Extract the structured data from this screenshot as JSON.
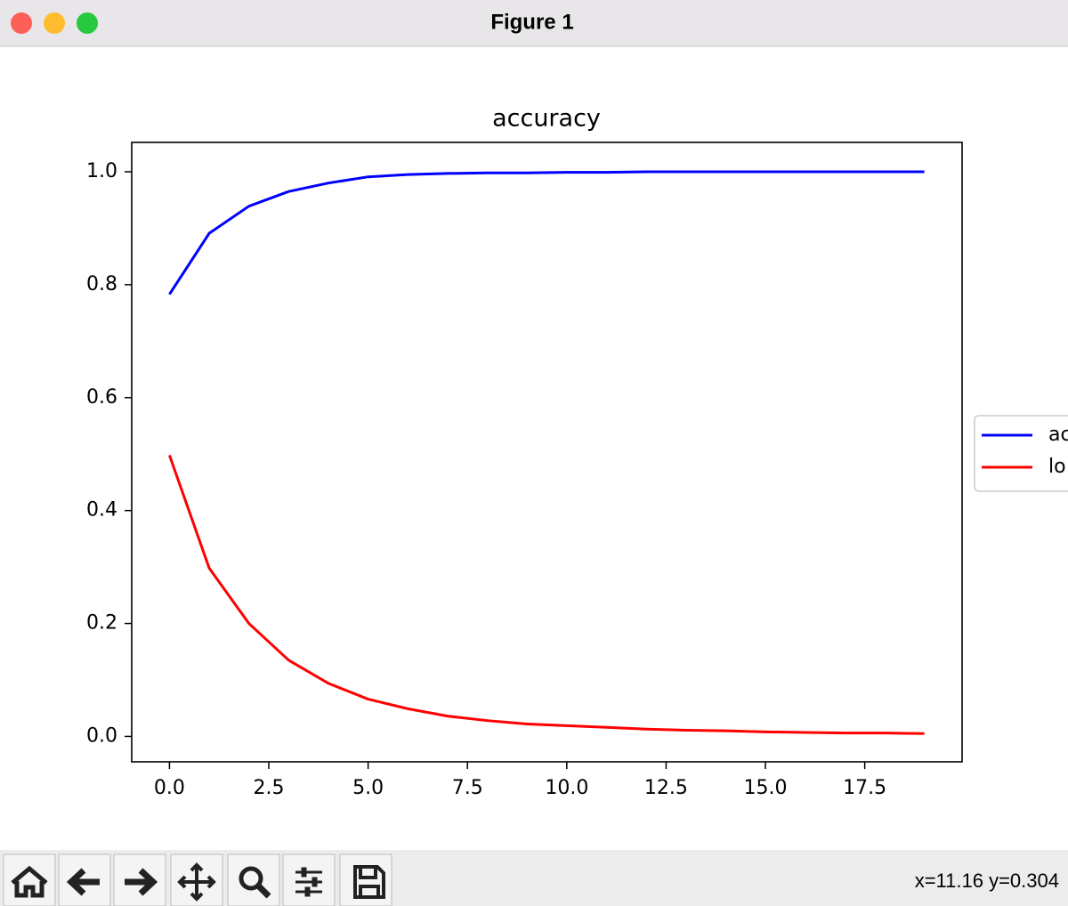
{
  "window": {
    "title": "Figure 1"
  },
  "status": "x=11.16 y=0.304",
  "chart_data": {
    "type": "line",
    "title": "accuracy",
    "x": [
      0,
      1,
      2,
      3,
      4,
      5,
      6,
      7,
      8,
      9,
      10,
      11,
      12,
      13,
      14,
      15,
      16,
      17,
      18,
      19
    ],
    "series": [
      {
        "name": "ac",
        "color": "#0000ff",
        "values": [
          0.783,
          0.891,
          0.939,
          0.965,
          0.98,
          0.991,
          0.995,
          0.997,
          0.998,
          0.998,
          0.999,
          0.999,
          1.0,
          1.0,
          1.0,
          1.0,
          1.0,
          1.0,
          1.0,
          1.0
        ]
      },
      {
        "name": "lo",
        "color": "#ff0000",
        "values": [
          0.498,
          0.298,
          0.2,
          0.135,
          0.094,
          0.066,
          0.049,
          0.036,
          0.028,
          0.022,
          0.019,
          0.016,
          0.013,
          0.011,
          0.01,
          0.008,
          0.007,
          0.006,
          0.006,
          0.005
        ]
      }
    ],
    "xlim": [
      -0.95,
      19.95
    ],
    "ylim": [
      -0.045,
      1.052
    ],
    "xticks": [
      {
        "value": 0,
        "label": "0.0"
      },
      2.5,
      {
        "value": 5,
        "label": "5.0"
      },
      7.5,
      {
        "value": 10,
        "label": "10.0"
      },
      12.5,
      {
        "value": 15,
        "label": "15.0"
      },
      17.5
    ],
    "yticks": [
      {
        "value": 0,
        "label": "0.0"
      },
      0.2,
      0.4,
      0.6,
      0.8,
      {
        "value": 1,
        "label": "1.0"
      }
    ],
    "grid": false,
    "legend": "outside-right"
  }
}
